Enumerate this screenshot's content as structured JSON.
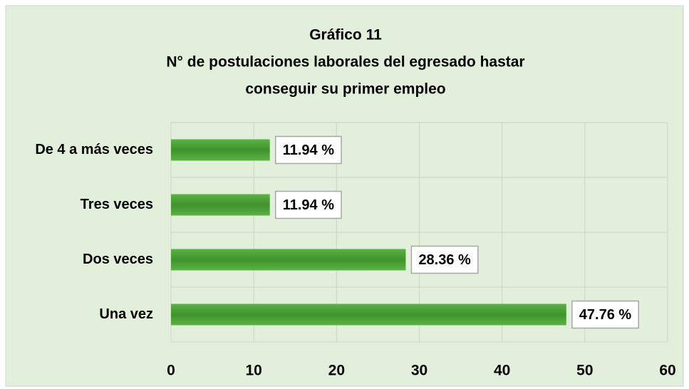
{
  "chart_data": {
    "type": "bar",
    "orientation": "horizontal",
    "title": [
      "Gráfico 11",
      "N° de postulaciones laborales del egresado hastar",
      "conseguir su primer empleo"
    ],
    "categories": [
      "De 4 a más veces",
      "Tres veces",
      "Dos veces",
      "Una vez"
    ],
    "values": [
      11.94,
      11.94,
      28.36,
      47.76
    ],
    "value_labels": [
      "11.94 %",
      "11.94 %",
      "28.36 %",
      "47.76 %"
    ],
    "color": "#4a9e36",
    "xlim": [
      0,
      60
    ],
    "xticks": [
      0,
      10,
      20,
      30,
      40,
      50,
      60
    ],
    "grid": true
  }
}
